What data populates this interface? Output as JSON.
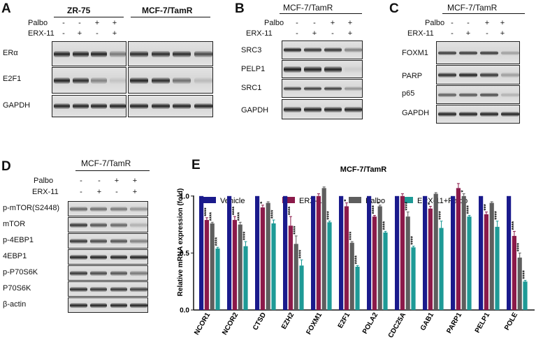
{
  "panels": {
    "A": {
      "letter": "A",
      "groups": [
        "ZR-75",
        "MCF-7/TamR"
      ],
      "treatments": {
        "labels": [
          "Palbo",
          "ERX-11"
        ],
        "palbo": [
          "-",
          "-",
          "+",
          "+"
        ],
        "erx": [
          "-",
          "+",
          "-",
          "+"
        ]
      },
      "rows": [
        "ERα",
        "E2F1",
        "GAPDH"
      ]
    },
    "B": {
      "letter": "B",
      "title": "MCF-7/TamR",
      "treatments": {
        "labels": [
          "Palbo",
          "ERX-11"
        ],
        "palbo": [
          "-",
          "-",
          "+",
          "+"
        ],
        "erx": [
          "-",
          "+",
          "-",
          "+"
        ]
      },
      "rows": [
        "SRC3",
        "PELP1",
        "SRC1",
        "GAPDH"
      ]
    },
    "C": {
      "letter": "C",
      "title": "MCF-7/TamR",
      "treatments": {
        "labels": [
          "Palbo",
          "ERX-11"
        ],
        "palbo": [
          "-",
          "-",
          "+",
          "+"
        ],
        "erx": [
          "-",
          "+",
          "-",
          "+"
        ]
      },
      "rows": [
        "FOXM1",
        "PARP",
        "p65",
        "GAPDH"
      ]
    },
    "D": {
      "letter": "D",
      "title": "MCF-7/TamR",
      "treatments": {
        "labels": [
          "Palbo",
          "ERX-11"
        ],
        "palbo": [
          "-",
          "-",
          "+",
          "+"
        ],
        "erx": [
          "-",
          "+",
          "-",
          "+"
        ]
      },
      "rows": [
        "p-mTOR(S2448)",
        "mTOR",
        "p-4EBP1",
        "4EBP1",
        "p-P70S6K",
        "P70S6K",
        "β-actin"
      ]
    },
    "E": {
      "letter": "E"
    }
  },
  "chart_data": {
    "type": "bar",
    "title": "MCF-7/TamR",
    "xlabel": "",
    "ylabel": "Relative mRNA expression (fold)",
    "ylim": [
      0,
      1.25
    ],
    "yticks": [
      "0.0",
      "0.5",
      "1.0"
    ],
    "grid": false,
    "legend_position": "top",
    "categories": [
      "NCOR1",
      "NCOR2",
      "CTSD",
      "EZH2",
      "FOXM1",
      "E2F1",
      "POLA2",
      "CDC25A",
      "GAB1",
      "PARP1",
      "PELP1",
      "POLE"
    ],
    "series": [
      {
        "name": "Vehicle",
        "color": "#1a1a8c",
        "values": [
          1.0,
          1.0,
          1.0,
          1.0,
          1.0,
          1.0,
          1.0,
          1.0,
          1.0,
          1.0,
          1.0,
          1.0
        ],
        "errors": [
          0,
          0,
          0,
          0,
          0,
          0,
          0,
          0,
          0,
          0,
          0,
          0
        ],
        "sig": [
          "",
          "",
          "",
          "",
          "",
          "",
          "",
          "",
          "",
          "",
          "",
          ""
        ]
      },
      {
        "name": "ERX-11",
        "color": "#8b1a4a",
        "values": [
          0.79,
          0.79,
          0.9,
          0.74,
          1.0,
          0.91,
          0.82,
          1.0,
          0.89,
          1.07,
          0.84,
          0.65
        ],
        "errors": [
          0.02,
          0.03,
          0.02,
          0.08,
          0.02,
          0.03,
          0.01,
          0.02,
          0.02,
          0.04,
          0.02,
          0.04
        ],
        "sig": [
          "****",
          "****",
          "*",
          "****",
          "",
          "*",
          "****",
          "",
          "*",
          "",
          "***",
          "****"
        ]
      },
      {
        "name": "Palbo",
        "color": "#5e5e5e",
        "values": [
          0.76,
          0.75,
          0.94,
          0.58,
          1.07,
          0.59,
          0.91,
          0.82,
          1.02,
          1.0,
          0.94,
          0.46
        ],
        "errors": [
          0.01,
          0.02,
          0.01,
          0.07,
          0.01,
          0.01,
          0.01,
          0.04,
          0.01,
          0.02,
          0.01,
          0.04
        ],
        "sig": [
          "****",
          "****",
          "",
          "****",
          "",
          "****",
          "*",
          "****",
          "",
          "*",
          "",
          "****"
        ]
      },
      {
        "name": "ERX-11+Palbo",
        "color": "#1e9a96",
        "values": [
          0.54,
          0.56,
          0.76,
          0.39,
          0.77,
          0.38,
          0.68,
          0.55,
          0.72,
          0.82,
          0.73,
          0.25
        ],
        "errors": [
          0.01,
          0.04,
          0.03,
          0.05,
          0.01,
          0.01,
          0.01,
          0.01,
          0.06,
          0.01,
          0.05,
          0.01
        ],
        "sig": [
          "****",
          "****",
          "****",
          "****",
          "****",
          "****",
          "****",
          "****",
          "****",
          "****",
          "****",
          "****"
        ]
      }
    ]
  },
  "colors": {
    "axis": "#111111",
    "blot_bg": "#dcdcdc",
    "band": "#1a1a1a"
  }
}
